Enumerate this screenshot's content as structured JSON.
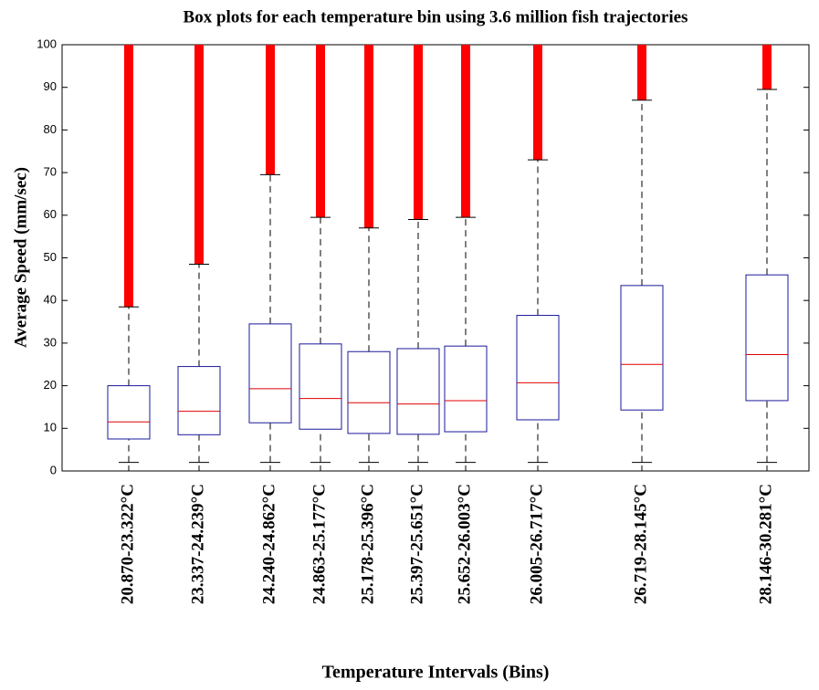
{
  "chart_data": {
    "type": "box",
    "title": "Box plots for each temperature bin using 3.6 million fish trajectories",
    "x_label": "Temperature Intervals (Bins)",
    "y_label": "Average Speed (mm/sec)",
    "categories": [
      "20.870-23.322°C",
      "23.337-24.239°C",
      "24.240-24.862°C",
      "24.863-25.177°C",
      "25.178-25.396°C",
      "25.397-25.651°C",
      "25.652-26.003°C",
      "26.005-26.717°C",
      "26.719-28.145°C",
      "28.146-30.281°C"
    ],
    "whisker_low": [
      2,
      2,
      2,
      2,
      2,
      2,
      2,
      2,
      2,
      2
    ],
    "q1": [
      7.5,
      8.5,
      11.3,
      9.8,
      8.8,
      8.6,
      9.2,
      12,
      14.3,
      16.5
    ],
    "median": [
      11.5,
      14,
      19.3,
      17,
      16,
      15.7,
      16.5,
      20.7,
      25,
      27.3
    ],
    "q3": [
      20,
      24.5,
      34.5,
      29.8,
      28,
      28.7,
      29.3,
      36.5,
      43.5,
      46
    ],
    "whisker_high": [
      38.5,
      48.5,
      69.5,
      59.5,
      57,
      59,
      59.5,
      73,
      87,
      89.5
    ],
    "outlier_high": [
      100,
      100,
      100,
      100,
      100,
      100,
      100,
      100,
      100,
      100
    ],
    "box_color": "#1a1a9c",
    "median_color": "#e00000",
    "outlier_color": "#ff0000",
    "ylim": [
      0,
      100
    ],
    "yticks": [
      0,
      10,
      20,
      30,
      40,
      50,
      60,
      70,
      80,
      90,
      100
    ]
  }
}
